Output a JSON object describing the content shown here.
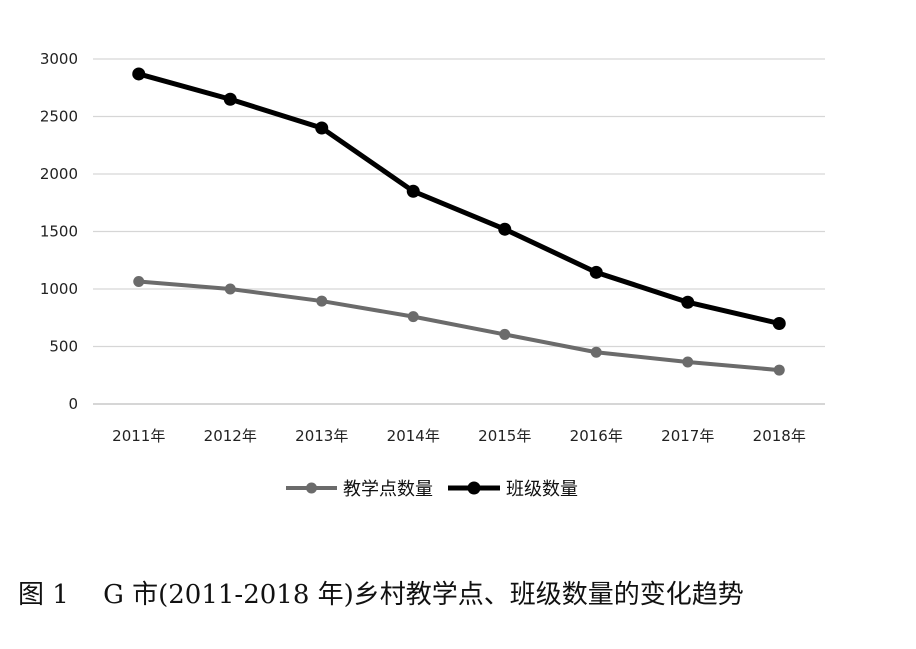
{
  "caption": "图 1　 G 市(2011-2018 年)乡村教学点、班级数量的变化趋势",
  "chart_data": {
    "type": "line",
    "categories": [
      "2011年",
      "2012年",
      "2013年",
      "2014年",
      "2015年",
      "2016年",
      "2017年",
      "2018年"
    ],
    "series": [
      {
        "name": "教学点数量",
        "values": [
          1065,
          1000,
          895,
          760,
          605,
          450,
          365,
          295
        ],
        "color": "#6b6b6b"
      },
      {
        "name": "班级数量",
        "values": [
          2870,
          2650,
          2400,
          1850,
          1520,
          1145,
          885,
          700
        ],
        "color": "#000000"
      }
    ],
    "ylim": [
      0,
      3000
    ],
    "yticks": [
      "0",
      "500",
      "1000",
      "1500",
      "2000",
      "2500",
      "3000"
    ],
    "grid": true,
    "legend": "bottom"
  }
}
